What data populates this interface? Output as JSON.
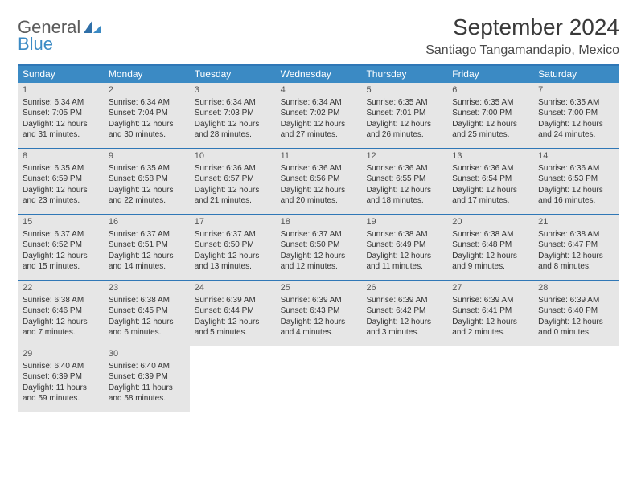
{
  "logo": {
    "general": "General",
    "blue": "Blue"
  },
  "title": "September 2024",
  "location": "Santiago Tangamandapio, Mexico",
  "weekdays": [
    "Sunday",
    "Monday",
    "Tuesday",
    "Wednesday",
    "Thursday",
    "Friday",
    "Saturday"
  ],
  "header_bg": "#3b8ac4",
  "border_color": "#2f77b6",
  "cell_bg": "#e6e6e6",
  "weeks": [
    [
      {
        "n": "1",
        "sr": "Sunrise: 6:34 AM",
        "ss": "Sunset: 7:05 PM",
        "d1": "Daylight: 12 hours",
        "d2": "and 31 minutes."
      },
      {
        "n": "2",
        "sr": "Sunrise: 6:34 AM",
        "ss": "Sunset: 7:04 PM",
        "d1": "Daylight: 12 hours",
        "d2": "and 30 minutes."
      },
      {
        "n": "3",
        "sr": "Sunrise: 6:34 AM",
        "ss": "Sunset: 7:03 PM",
        "d1": "Daylight: 12 hours",
        "d2": "and 28 minutes."
      },
      {
        "n": "4",
        "sr": "Sunrise: 6:34 AM",
        "ss": "Sunset: 7:02 PM",
        "d1": "Daylight: 12 hours",
        "d2": "and 27 minutes."
      },
      {
        "n": "5",
        "sr": "Sunrise: 6:35 AM",
        "ss": "Sunset: 7:01 PM",
        "d1": "Daylight: 12 hours",
        "d2": "and 26 minutes."
      },
      {
        "n": "6",
        "sr": "Sunrise: 6:35 AM",
        "ss": "Sunset: 7:00 PM",
        "d1": "Daylight: 12 hours",
        "d2": "and 25 minutes."
      },
      {
        "n": "7",
        "sr": "Sunrise: 6:35 AM",
        "ss": "Sunset: 7:00 PM",
        "d1": "Daylight: 12 hours",
        "d2": "and 24 minutes."
      }
    ],
    [
      {
        "n": "8",
        "sr": "Sunrise: 6:35 AM",
        "ss": "Sunset: 6:59 PM",
        "d1": "Daylight: 12 hours",
        "d2": "and 23 minutes."
      },
      {
        "n": "9",
        "sr": "Sunrise: 6:35 AM",
        "ss": "Sunset: 6:58 PM",
        "d1": "Daylight: 12 hours",
        "d2": "and 22 minutes."
      },
      {
        "n": "10",
        "sr": "Sunrise: 6:36 AM",
        "ss": "Sunset: 6:57 PM",
        "d1": "Daylight: 12 hours",
        "d2": "and 21 minutes."
      },
      {
        "n": "11",
        "sr": "Sunrise: 6:36 AM",
        "ss": "Sunset: 6:56 PM",
        "d1": "Daylight: 12 hours",
        "d2": "and 20 minutes."
      },
      {
        "n": "12",
        "sr": "Sunrise: 6:36 AM",
        "ss": "Sunset: 6:55 PM",
        "d1": "Daylight: 12 hours",
        "d2": "and 18 minutes."
      },
      {
        "n": "13",
        "sr": "Sunrise: 6:36 AM",
        "ss": "Sunset: 6:54 PM",
        "d1": "Daylight: 12 hours",
        "d2": "and 17 minutes."
      },
      {
        "n": "14",
        "sr": "Sunrise: 6:36 AM",
        "ss": "Sunset: 6:53 PM",
        "d1": "Daylight: 12 hours",
        "d2": "and 16 minutes."
      }
    ],
    [
      {
        "n": "15",
        "sr": "Sunrise: 6:37 AM",
        "ss": "Sunset: 6:52 PM",
        "d1": "Daylight: 12 hours",
        "d2": "and 15 minutes."
      },
      {
        "n": "16",
        "sr": "Sunrise: 6:37 AM",
        "ss": "Sunset: 6:51 PM",
        "d1": "Daylight: 12 hours",
        "d2": "and 14 minutes."
      },
      {
        "n": "17",
        "sr": "Sunrise: 6:37 AM",
        "ss": "Sunset: 6:50 PM",
        "d1": "Daylight: 12 hours",
        "d2": "and 13 minutes."
      },
      {
        "n": "18",
        "sr": "Sunrise: 6:37 AM",
        "ss": "Sunset: 6:50 PM",
        "d1": "Daylight: 12 hours",
        "d2": "and 12 minutes."
      },
      {
        "n": "19",
        "sr": "Sunrise: 6:38 AM",
        "ss": "Sunset: 6:49 PM",
        "d1": "Daylight: 12 hours",
        "d2": "and 11 minutes."
      },
      {
        "n": "20",
        "sr": "Sunrise: 6:38 AM",
        "ss": "Sunset: 6:48 PM",
        "d1": "Daylight: 12 hours",
        "d2": "and 9 minutes."
      },
      {
        "n": "21",
        "sr": "Sunrise: 6:38 AM",
        "ss": "Sunset: 6:47 PM",
        "d1": "Daylight: 12 hours",
        "d2": "and 8 minutes."
      }
    ],
    [
      {
        "n": "22",
        "sr": "Sunrise: 6:38 AM",
        "ss": "Sunset: 6:46 PM",
        "d1": "Daylight: 12 hours",
        "d2": "and 7 minutes."
      },
      {
        "n": "23",
        "sr": "Sunrise: 6:38 AM",
        "ss": "Sunset: 6:45 PM",
        "d1": "Daylight: 12 hours",
        "d2": "and 6 minutes."
      },
      {
        "n": "24",
        "sr": "Sunrise: 6:39 AM",
        "ss": "Sunset: 6:44 PM",
        "d1": "Daylight: 12 hours",
        "d2": "and 5 minutes."
      },
      {
        "n": "25",
        "sr": "Sunrise: 6:39 AM",
        "ss": "Sunset: 6:43 PM",
        "d1": "Daylight: 12 hours",
        "d2": "and 4 minutes."
      },
      {
        "n": "26",
        "sr": "Sunrise: 6:39 AM",
        "ss": "Sunset: 6:42 PM",
        "d1": "Daylight: 12 hours",
        "d2": "and 3 minutes."
      },
      {
        "n": "27",
        "sr": "Sunrise: 6:39 AM",
        "ss": "Sunset: 6:41 PM",
        "d1": "Daylight: 12 hours",
        "d2": "and 2 minutes."
      },
      {
        "n": "28",
        "sr": "Sunrise: 6:39 AM",
        "ss": "Sunset: 6:40 PM",
        "d1": "Daylight: 12 hours",
        "d2": "and 0 minutes."
      }
    ],
    [
      {
        "n": "29",
        "sr": "Sunrise: 6:40 AM",
        "ss": "Sunset: 6:39 PM",
        "d1": "Daylight: 11 hours",
        "d2": "and 59 minutes."
      },
      {
        "n": "30",
        "sr": "Sunrise: 6:40 AM",
        "ss": "Sunset: 6:39 PM",
        "d1": "Daylight: 11 hours",
        "d2": "and 58 minutes."
      },
      null,
      null,
      null,
      null,
      null
    ]
  ]
}
